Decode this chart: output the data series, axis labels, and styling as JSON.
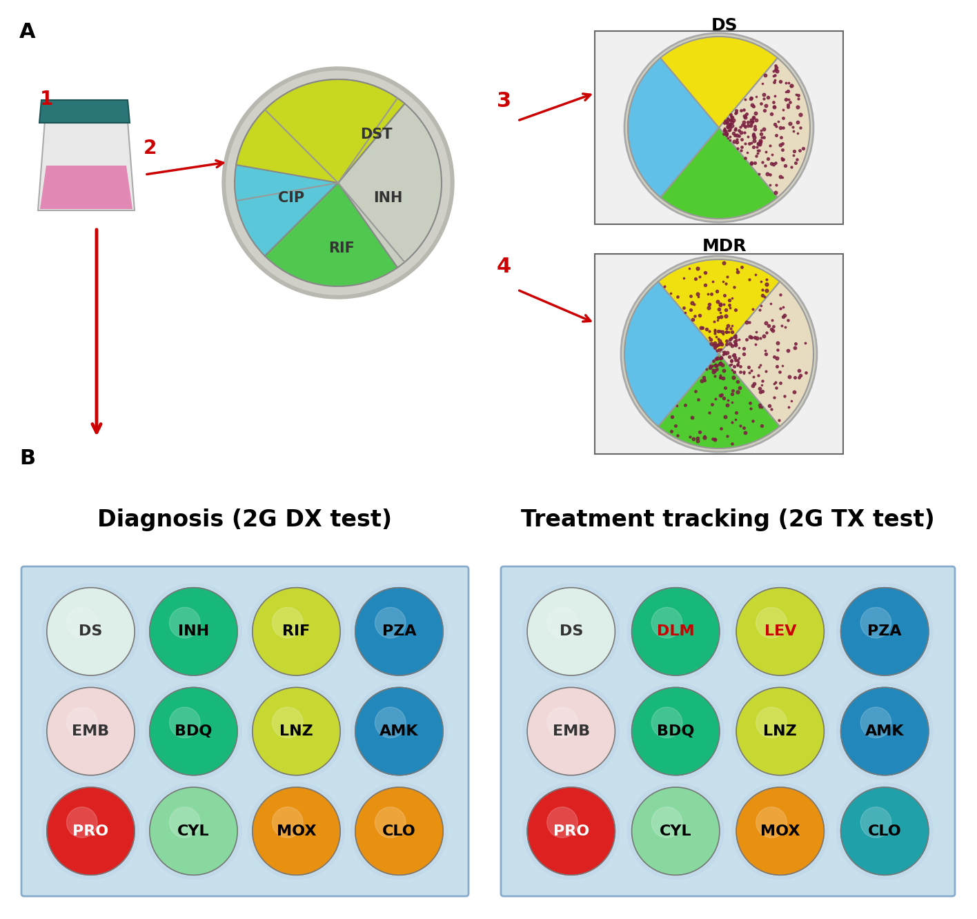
{
  "panel_A_label": "A",
  "panel_B_label": "B",
  "arrow_color": "#CC0000",
  "diag_title": "Diagnosis (2G DX test)",
  "treat_title": "Treatment tracking (2G TX test)",
  "dx_wells": [
    [
      "DS",
      "INH",
      "RIF",
      "PZA"
    ],
    [
      "EMB",
      "BDQ",
      "LNZ",
      "AMK"
    ],
    [
      "PRO",
      "CYL",
      "MOX",
      "CLO"
    ]
  ],
  "dx_colors": [
    [
      "#deeee8",
      "#18b87a",
      "#c8d832",
      "#2288bb"
    ],
    [
      "#f0d8d8",
      "#18b87a",
      "#c8d832",
      "#2288bb"
    ],
    [
      "#dd2020",
      "#88d8a0",
      "#e89010",
      "#e89010"
    ]
  ],
  "dx_text_colors": [
    [
      "#333333",
      "#000000",
      "#000000",
      "#000000"
    ],
    [
      "#333333",
      "#000000",
      "#000000",
      "#000000"
    ],
    [
      "#ffffff",
      "#000000",
      "#000000",
      "#000000"
    ]
  ],
  "tx_wells": [
    [
      "DS",
      "DLM",
      "LEV",
      "PZA"
    ],
    [
      "EMB",
      "BDQ",
      "LNZ",
      "AMK"
    ],
    [
      "PRO",
      "CYL",
      "MOX",
      "CLO"
    ]
  ],
  "tx_colors": [
    [
      "#deeee8",
      "#18b87a",
      "#c8d832",
      "#2288bb"
    ],
    [
      "#f0d8d8",
      "#18b87a",
      "#c8d832",
      "#2288bb"
    ],
    [
      "#dd2020",
      "#88d8a0",
      "#e89010",
      "#20a0a8"
    ]
  ],
  "tx_text_colors": [
    [
      "#333333",
      "#CC0000",
      "#CC0000",
      "#000000"
    ],
    [
      "#333333",
      "#000000",
      "#000000",
      "#000000"
    ],
    [
      "#ffffff",
      "#000000",
      "#000000",
      "#000000"
    ]
  ],
  "background_color": "#ffffff"
}
